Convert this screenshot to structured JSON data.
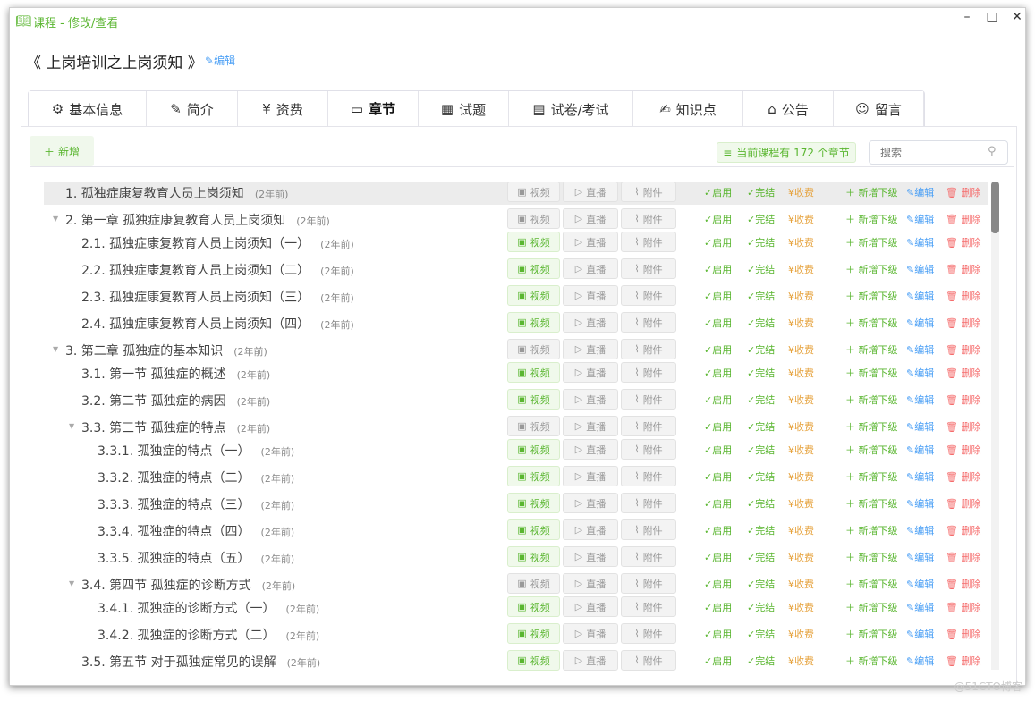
{
  "window": {
    "title": "课程 - 修改/查看",
    "app_icon": "open-book-icon",
    "controls": [
      "minimize",
      "maximize",
      "close"
    ]
  },
  "course": {
    "title": "《 上岗培训之上岗须知 》",
    "edit_label": "编辑"
  },
  "tabs": [
    {
      "label": "基本信息",
      "icon": "gear-icon"
    },
    {
      "label": "简介",
      "icon": "document-edit-icon"
    },
    {
      "label": "资费",
      "icon": "money-bag-icon"
    },
    {
      "label": "章节",
      "icon": "notebook-icon",
      "active": true
    },
    {
      "label": "试题",
      "icon": "calculator-icon"
    },
    {
      "label": "试卷/考试",
      "icon": "exam-paper-icon"
    },
    {
      "label": "知识点",
      "icon": "note-pen-icon"
    },
    {
      "label": "公告",
      "icon": "announcement-icon"
    },
    {
      "label": "留言",
      "icon": "chat-icon"
    }
  ],
  "toolbar": {
    "add_label": "新增",
    "count_label": "当前课程有 172 个章节",
    "search_placeholder": "搜索"
  },
  "row_labels": {
    "video": "视频",
    "live": "直播",
    "attach": "附件",
    "enable": "启用",
    "finish": "完结",
    "charge": "收费",
    "add_child": "新增下级",
    "edit": "编辑",
    "delete": "删除"
  },
  "colors": {
    "accent": "#5ab630",
    "edit": "#4a9ff5",
    "delete": "#f56c6c",
    "charge": "#e6a23c"
  },
  "chapters": [
    {
      "title": "1. 孤独症康复教育人员上岗须知",
      "time": "(2年前)",
      "level": 1,
      "expandable": false,
      "video": false,
      "highlighted": true
    },
    {
      "title": "2. 第一章 孤独症康复教育人员上岗须知",
      "time": "(2年前)",
      "level": 1,
      "expandable": true,
      "video": false
    },
    {
      "title": "2.1. 孤独症康复教育人员上岗须知（一）",
      "time": "(2年前)",
      "level": 2,
      "video": true
    },
    {
      "title": "2.2. 孤独症康复教育人员上岗须知（二）",
      "time": "(2年前)",
      "level": 2,
      "video": true
    },
    {
      "title": "2.3. 孤独症康复教育人员上岗须知（三）",
      "time": "(2年前)",
      "level": 2,
      "video": true
    },
    {
      "title": "2.4. 孤独症康复教育人员上岗须知（四）",
      "time": "(2年前)",
      "level": 2,
      "video": true
    },
    {
      "title": "3. 第二章 孤独症的基本知识",
      "time": "(2年前)",
      "level": 1,
      "expandable": true,
      "video": false
    },
    {
      "title": "3.1. 第一节 孤独症的概述",
      "time": "(2年前)",
      "level": 2,
      "video": true
    },
    {
      "title": "3.2. 第二节 孤独症的病因",
      "time": "(2年前)",
      "level": 2,
      "video": true
    },
    {
      "title": "3.3. 第三节 孤独症的特点",
      "time": "(2年前)",
      "level": 2,
      "expandable": true,
      "video": false
    },
    {
      "title": "3.3.1. 孤独症的特点（一）",
      "time": "(2年前)",
      "level": 3,
      "video": true
    },
    {
      "title": "3.3.2. 孤独症的特点（二）",
      "time": "(2年前)",
      "level": 3,
      "video": true
    },
    {
      "title": "3.3.3. 孤独症的特点（三）",
      "time": "(2年前)",
      "level": 3,
      "video": true
    },
    {
      "title": "3.3.4. 孤独症的特点（四）",
      "time": "(2年前)",
      "level": 3,
      "video": true
    },
    {
      "title": "3.3.5. 孤独症的特点（五）",
      "time": "(2年前)",
      "level": 3,
      "video": true
    },
    {
      "title": "3.4. 第四节 孤独症的诊断方式",
      "time": "(2年前)",
      "level": 2,
      "expandable": true,
      "video": false
    },
    {
      "title": "3.4.1. 孤独症的诊断方式（一）",
      "time": "(2年前)",
      "level": 3,
      "video": true
    },
    {
      "title": "3.4.2. 孤独症的诊断方式（二）",
      "time": "(2年前)",
      "level": 3,
      "video": true
    },
    {
      "title": "3.5. 第五节 对于孤独症常见的误解",
      "time": "(2年前)",
      "level": 2,
      "video": true
    }
  ],
  "watermark": "@51CTO博客"
}
